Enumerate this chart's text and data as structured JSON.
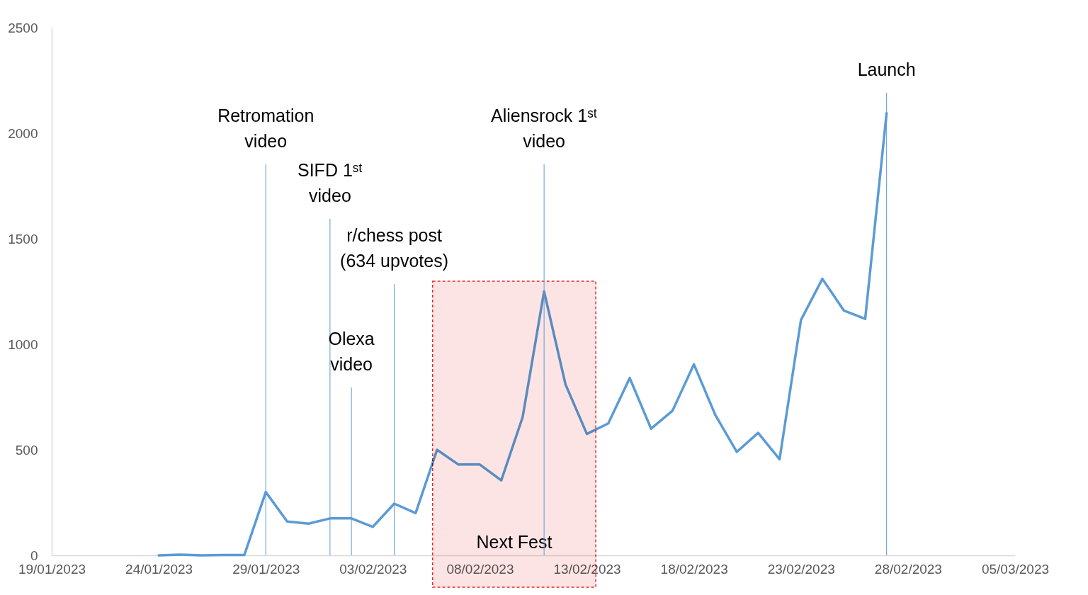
{
  "chart_data": {
    "type": "line",
    "x": [
      "2023-01-24",
      "2023-01-25",
      "2023-01-26",
      "2023-01-27",
      "2023-01-28",
      "2023-01-29",
      "2023-01-30",
      "2023-01-31",
      "2023-02-01",
      "2023-02-02",
      "2023-02-03",
      "2023-02-04",
      "2023-02-05",
      "2023-02-06",
      "2023-02-07",
      "2023-02-08",
      "2023-02-09",
      "2023-02-10",
      "2023-02-11",
      "2023-02-12",
      "2023-02-13",
      "2023-02-14",
      "2023-02-15",
      "2023-02-16",
      "2023-02-17",
      "2023-02-18",
      "2023-02-19",
      "2023-02-20",
      "2023-02-21",
      "2023-02-22",
      "2023-02-23",
      "2023-02-24",
      "2023-02-25",
      "2023-02-26",
      "2023-02-27"
    ],
    "series": [
      {
        "color": "#5b9bd5",
        "values": [
          0,
          3,
          0,
          2,
          2,
          300,
          160,
          150,
          175,
          175,
          135,
          245,
          200,
          500,
          430,
          430,
          355,
          655,
          1250,
          810,
          575,
          625,
          840,
          600,
          685,
          905,
          665,
          490,
          580,
          455,
          1115,
          1310,
          1160,
          1120,
          2095
        ]
      }
    ],
    "xlim": [
      "2023-01-19",
      "2023-03-05"
    ],
    "xticks": [
      {
        "value": "2023-01-19",
        "label": "19/01/2023"
      },
      {
        "value": "2023-01-24",
        "label": "24/01/2023"
      },
      {
        "value": "2023-01-29",
        "label": "29/01/2023"
      },
      {
        "value": "2023-02-03",
        "label": "03/02/2023"
      },
      {
        "value": "2023-02-08",
        "label": "08/02/2023"
      },
      {
        "value": "2023-02-13",
        "label": "13/02/2023"
      },
      {
        "value": "2023-02-18",
        "label": "18/02/2023"
      },
      {
        "value": "2023-02-23",
        "label": "23/02/2023"
      },
      {
        "value": "2023-02-28",
        "label": "28/02/2023"
      },
      {
        "value": "2023-03-05",
        "label": "05/03/2023"
      }
    ],
    "ylim": [
      0,
      2500
    ],
    "yticks": [
      0,
      500,
      1000,
      1500,
      2000,
      2500
    ],
    "grid": false,
    "marker": "none",
    "line_style": "solid",
    "ref_lines": [
      {
        "axis": "x",
        "value": "2023-01-29",
        "label": "Retromation\nvideo",
        "color": "#5b9bd5"
      },
      {
        "axis": "x",
        "value": "2023-02-01",
        "label": "SIFD 1ˢᵗ\nvideo",
        "color": "#5b9bd5"
      },
      {
        "axis": "x",
        "value": "2023-02-04",
        "label": "r/chess post\n(634 upvotes)",
        "color": "#5b9bd5"
      },
      {
        "axis": "x",
        "value": "2023-02-02",
        "label": "Olexa\nvideo",
        "color": "#5b9bd5"
      },
      {
        "axis": "x",
        "value": "2023-02-11",
        "label": "Aliensrock 1ˢᵗ\nvideo",
        "color": "#5b9bd5"
      },
      {
        "axis": "x",
        "value": "2023-02-27",
        "label": "Launch",
        "color": "#5b9bd5"
      }
    ],
    "bands": [
      {
        "axis": "x",
        "from": "2023-02-05T19:00",
        "to": "2023-02-13T10:00",
        "label": "Next Fest",
        "color": "#fde4e4"
      }
    ]
  }
}
